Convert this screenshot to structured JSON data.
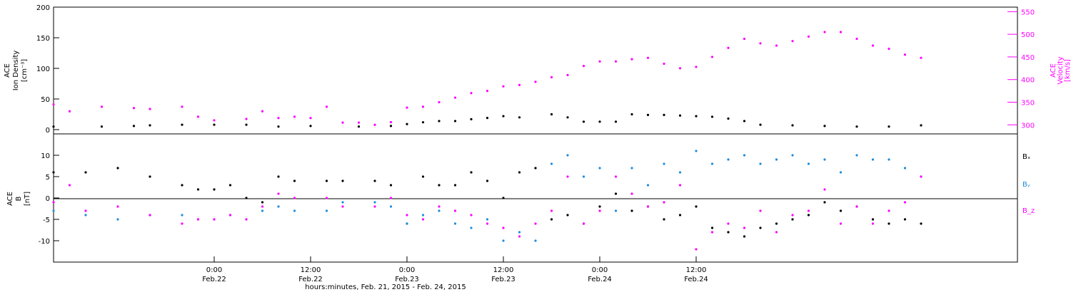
{
  "colors": {
    "black": "#000000",
    "magenta": "#ff00ff",
    "blue": "#1e8cdc"
  },
  "chart_data": [
    {
      "type": "scatter",
      "panel": "top",
      "left_ylabel": [
        "ACE",
        "Ion Density",
        "[cm⁻³]"
      ],
      "right_ylabel": [
        "ACE",
        "Velocity",
        "[km/s]"
      ],
      "left_ylim": [
        0,
        200
      ],
      "left_ticks": [
        "0",
        "50",
        "100",
        "150",
        "200"
      ],
      "right_ylim": [
        280,
        560
      ],
      "right_ticks": [
        "300",
        "350",
        "400",
        "450",
        "500",
        "550"
      ],
      "series": [
        {
          "axis": "left",
          "color": "#000000",
          "points": [
            [
              -20,
              5
            ],
            [
              -14,
              5
            ],
            [
              -10,
              6
            ],
            [
              -8,
              7
            ],
            [
              -4,
              8
            ],
            [
              0,
              8
            ],
            [
              4,
              8
            ],
            [
              8,
              5
            ],
            [
              12,
              6
            ],
            [
              18,
              5
            ],
            [
              22,
              6
            ],
            [
              24,
              9
            ],
            [
              26,
              12
            ],
            [
              28,
              14
            ],
            [
              30,
              14
            ],
            [
              32,
              17
            ],
            [
              34,
              19
            ],
            [
              36,
              22
            ],
            [
              38,
              20
            ],
            [
              42,
              25
            ],
            [
              44,
              20
            ],
            [
              46,
              13
            ],
            [
              48,
              13
            ],
            [
              50,
              13
            ],
            [
              52,
              25
            ],
            [
              54,
              24
            ],
            [
              56,
              24
            ],
            [
              58,
              23
            ],
            [
              60,
              22
            ],
            [
              62,
              21
            ],
            [
              64,
              18
            ],
            [
              66,
              14
            ],
            [
              68,
              8
            ],
            [
              72,
              7
            ],
            [
              76,
              6
            ],
            [
              80,
              5
            ],
            [
              84,
              5
            ],
            [
              88,
              7
            ]
          ]
        },
        {
          "axis": "right",
          "color": "#ff00ff",
          "points": [
            [
              -20,
              345
            ],
            [
              -18,
              330
            ],
            [
              -14,
              340
            ],
            [
              -10,
              337
            ],
            [
              -8,
              335
            ],
            [
              -4,
              340
            ],
            [
              -2,
              318
            ],
            [
              0,
              310
            ],
            [
              4,
              313
            ],
            [
              6,
              330
            ],
            [
              8,
              315
            ],
            [
              10,
              318
            ],
            [
              12,
              315
            ],
            [
              14,
              340
            ],
            [
              16,
              305
            ],
            [
              18,
              305
            ],
            [
              20,
              300
            ],
            [
              22,
              306
            ],
            [
              24,
              338
            ],
            [
              26,
              340
            ],
            [
              28,
              350
            ],
            [
              30,
              360
            ],
            [
              32,
              370
            ],
            [
              34,
              375
            ],
            [
              36,
              385
            ],
            [
              38,
              388
            ],
            [
              40,
              395
            ],
            [
              42,
              405
            ],
            [
              44,
              410
            ],
            [
              46,
              430
            ],
            [
              48,
              440
            ],
            [
              50,
              440
            ],
            [
              52,
              445
            ],
            [
              54,
              448
            ],
            [
              56,
              435
            ],
            [
              58,
              425
            ],
            [
              60,
              428
            ],
            [
              62,
              450
            ],
            [
              64,
              470
            ],
            [
              66,
              490
            ],
            [
              68,
              480
            ],
            [
              70,
              475
            ],
            [
              72,
              485
            ],
            [
              74,
              495
            ],
            [
              76,
              505
            ],
            [
              78,
              505
            ],
            [
              80,
              490
            ],
            [
              82,
              475
            ],
            [
              84,
              468
            ],
            [
              86,
              455
            ],
            [
              88,
              448
            ]
          ]
        }
      ]
    },
    {
      "type": "scatter",
      "panel": "bottom",
      "ylabel": [
        "ACE",
        "B",
        "[nT]"
      ],
      "ylim": [
        -15,
        15
      ],
      "ticks": [
        "-10",
        "-5",
        "0",
        "5",
        "10"
      ],
      "legend": [
        "Bₓ",
        "Bᵧ",
        "B_z"
      ],
      "legend_placement": "right",
      "series": [
        {
          "name": "Bₓ",
          "color": "#000000",
          "points": [
            [
              -20,
              6
            ],
            [
              -16,
              6
            ],
            [
              -12,
              7
            ],
            [
              -8,
              5
            ],
            [
              -4,
              3
            ],
            [
              -2,
              2
            ],
            [
              0,
              2
            ],
            [
              2,
              3
            ],
            [
              4,
              0
            ],
            [
              6,
              -1
            ],
            [
              8,
              5
            ],
            [
              10,
              4
            ],
            [
              14,
              4
            ],
            [
              16,
              4
            ],
            [
              20,
              4
            ],
            [
              22,
              3
            ],
            [
              24,
              -6
            ],
            [
              26,
              5
            ],
            [
              28,
              3
            ],
            [
              30,
              3
            ],
            [
              32,
              6
            ],
            [
              34,
              4
            ],
            [
              36,
              0
            ],
            [
              38,
              6
            ],
            [
              40,
              7
            ],
            [
              42,
              -5
            ],
            [
              44,
              -4
            ],
            [
              46,
              -6
            ],
            [
              48,
              -2
            ],
            [
              50,
              1
            ],
            [
              52,
              -3
            ],
            [
              54,
              -2
            ],
            [
              56,
              -5
            ],
            [
              58,
              -4
            ],
            [
              60,
              -2
            ],
            [
              62,
              -7
            ],
            [
              64,
              -8
            ],
            [
              66,
              -9
            ],
            [
              68,
              -7
            ],
            [
              70,
              -6
            ],
            [
              72,
              -5
            ],
            [
              74,
              -4
            ],
            [
              76,
              -1
            ],
            [
              78,
              -3
            ],
            [
              80,
              -2
            ],
            [
              82,
              -5
            ],
            [
              84,
              -6
            ],
            [
              86,
              -5
            ],
            [
              88,
              -6
            ]
          ]
        },
        {
          "name": "Bᵧ",
          "color": "#1e8cdc",
          "points": [
            [
              -20,
              -3
            ],
            [
              -16,
              -4
            ],
            [
              -12,
              -5
            ],
            [
              -8,
              -4
            ],
            [
              -4,
              -4
            ],
            [
              -2,
              -5
            ],
            [
              0,
              -5
            ],
            [
              2,
              -4
            ],
            [
              4,
              -5
            ],
            [
              6,
              -3
            ],
            [
              8,
              -2
            ],
            [
              10,
              -3
            ],
            [
              14,
              -3
            ],
            [
              16,
              -1
            ],
            [
              20,
              -1
            ],
            [
              22,
              -2
            ],
            [
              24,
              -6
            ],
            [
              26,
              -4
            ],
            [
              28,
              -3
            ],
            [
              30,
              -6
            ],
            [
              32,
              -7
            ],
            [
              34,
              -5
            ],
            [
              36,
              -10
            ],
            [
              38,
              -8
            ],
            [
              40,
              -10
            ],
            [
              42,
              8
            ],
            [
              44,
              10
            ],
            [
              46,
              5
            ],
            [
              48,
              7
            ],
            [
              50,
              -3
            ],
            [
              52,
              7
            ],
            [
              54,
              3
            ],
            [
              56,
              8
            ],
            [
              58,
              6
            ],
            [
              60,
              11
            ],
            [
              62,
              8
            ],
            [
              64,
              9
            ],
            [
              66,
              10
            ],
            [
              68,
              8
            ],
            [
              70,
              9
            ],
            [
              72,
              10
            ],
            [
              74,
              8
            ],
            [
              76,
              9
            ],
            [
              78,
              6
            ],
            [
              80,
              10
            ],
            [
              82,
              9
            ],
            [
              84,
              9
            ],
            [
              86,
              7
            ],
            [
              88,
              5
            ]
          ]
        },
        {
          "name": "B_z",
          "color": "#ff00ff",
          "points": [
            [
              -20,
              -1
            ],
            [
              -18,
              3
            ],
            [
              -16,
              -3
            ],
            [
              -12,
              -2
            ],
            [
              -8,
              -4
            ],
            [
              -4,
              -6
            ],
            [
              -2,
              -5
            ],
            [
              0,
              -5
            ],
            [
              2,
              -4
            ],
            [
              4,
              -5
            ],
            [
              6,
              -2
            ],
            [
              8,
              1
            ],
            [
              10,
              0
            ],
            [
              14,
              0
            ],
            [
              16,
              -2
            ],
            [
              20,
              -2
            ],
            [
              22,
              0
            ],
            [
              24,
              -4
            ],
            [
              26,
              -5
            ],
            [
              28,
              -2
            ],
            [
              30,
              -3
            ],
            [
              32,
              -4
            ],
            [
              34,
              -6
            ],
            [
              36,
              -7
            ],
            [
              38,
              -9
            ],
            [
              40,
              -6
            ],
            [
              42,
              -3
            ],
            [
              44,
              5
            ],
            [
              46,
              -6
            ],
            [
              48,
              -3
            ],
            [
              50,
              5
            ],
            [
              52,
              1
            ],
            [
              54,
              -2
            ],
            [
              56,
              -1
            ],
            [
              58,
              3
            ],
            [
              60,
              -12
            ],
            [
              62,
              -8
            ],
            [
              64,
              -6
            ],
            [
              66,
              -7
            ],
            [
              68,
              -3
            ],
            [
              70,
              -8
            ],
            [
              72,
              -4
            ],
            [
              74,
              -3
            ],
            [
              76,
              2
            ],
            [
              78,
              -6
            ],
            [
              80,
              -2
            ],
            [
              82,
              -6
            ],
            [
              84,
              -3
            ],
            [
              86,
              -1
            ],
            [
              88,
              5
            ]
          ]
        }
      ]
    }
  ],
  "x_axis": {
    "xlim": [
      -20,
      100
    ],
    "ticks": [
      {
        "x": 0,
        "time": "0:00",
        "date": "Feb.22"
      },
      {
        "x": 12,
        "time": "12:00",
        "date": "Feb.22"
      },
      {
        "x": 24,
        "time": "0:00",
        "date": "Feb.23"
      },
      {
        "x": 36,
        "time": "12:00",
        "date": "Feb.23"
      },
      {
        "x": 48,
        "time": "0:00",
        "date": "Feb.24"
      },
      {
        "x": 60,
        "time": "12:00",
        "date": "Feb.24"
      }
    ],
    "xlabel": "hours:minutes, Feb. 21, 2015 - Feb. 24, 2015"
  }
}
